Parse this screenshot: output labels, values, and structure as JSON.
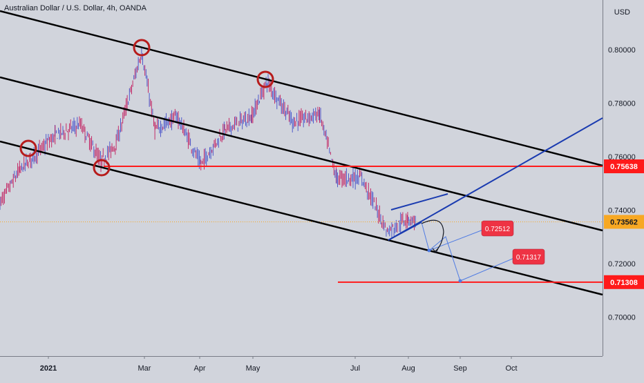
{
  "header": {
    "title": "Australian Dollar / U.S. Dollar, 4h, OANDA",
    "currency": "USD"
  },
  "colors": {
    "background": "#d1d4dc",
    "candle_up": "#3f4bc9",
    "candle_down": "#c2185b",
    "channel": "#000000",
    "support_line": "#ff1a1a",
    "trend_line": "#1a3bb0",
    "projection": "#4f7be3",
    "circle": "#b71c1c",
    "current_price_label": "#f7a823",
    "marker_label": "#ee3344"
  },
  "chart_data": {
    "type": "candlestick",
    "title": "Australian Dollar / U.S. Dollar, 4h, OANDA",
    "ylabel": "USD",
    "ylim": [
      0.685,
      0.808
    ],
    "grid": false,
    "x_ticks": [
      "2021",
      "Mar",
      "Apr",
      "May",
      "Jul",
      "Aug",
      "Sep",
      "Oct"
    ],
    "y_ticks": [
      "0.80000",
      "0.78000",
      "0.76000",
      "0.74000",
      "0.72000",
      "0.70000"
    ],
    "price_tags": [
      {
        "value": 0.75638,
        "label": "0.75638",
        "kind": "support"
      },
      {
        "value": 0.73562,
        "label": "0.73562",
        "kind": "current"
      },
      {
        "value": 0.71308,
        "label": "0.71308",
        "kind": "support"
      }
    ],
    "target_labels": [
      {
        "label": "0.72512",
        "price": 0.7251
      },
      {
        "label": "0.71317",
        "price": 0.7132
      }
    ],
    "price_path": [
      [
        "2020-11-01",
        0.71
      ],
      [
        "2020-11-15",
        0.73
      ],
      [
        "2020-12-01",
        0.74
      ],
      [
        "2020-12-15",
        0.755
      ],
      [
        "2021-01-05",
        0.768
      ],
      [
        "2021-01-20",
        0.772
      ],
      [
        "2021-02-01",
        0.758
      ],
      [
        "2021-02-10",
        0.765
      ],
      [
        "2021-02-25",
        0.799
      ],
      [
        "2021-03-05",
        0.77
      ],
      [
        "2021-03-18",
        0.775
      ],
      [
        "2021-04-01",
        0.757
      ],
      [
        "2021-04-15",
        0.77
      ],
      [
        "2021-05-01",
        0.775
      ],
      [
        "2021-05-10",
        0.788
      ],
      [
        "2021-05-25",
        0.773
      ],
      [
        "2021-06-10",
        0.776
      ],
      [
        "2021-06-20",
        0.752
      ],
      [
        "2021-07-05",
        0.752
      ],
      [
        "2021-07-20",
        0.732
      ],
      [
        "2021-08-01",
        0.737
      ],
      [
        "2021-08-06",
        0.7356
      ]
    ]
  }
}
